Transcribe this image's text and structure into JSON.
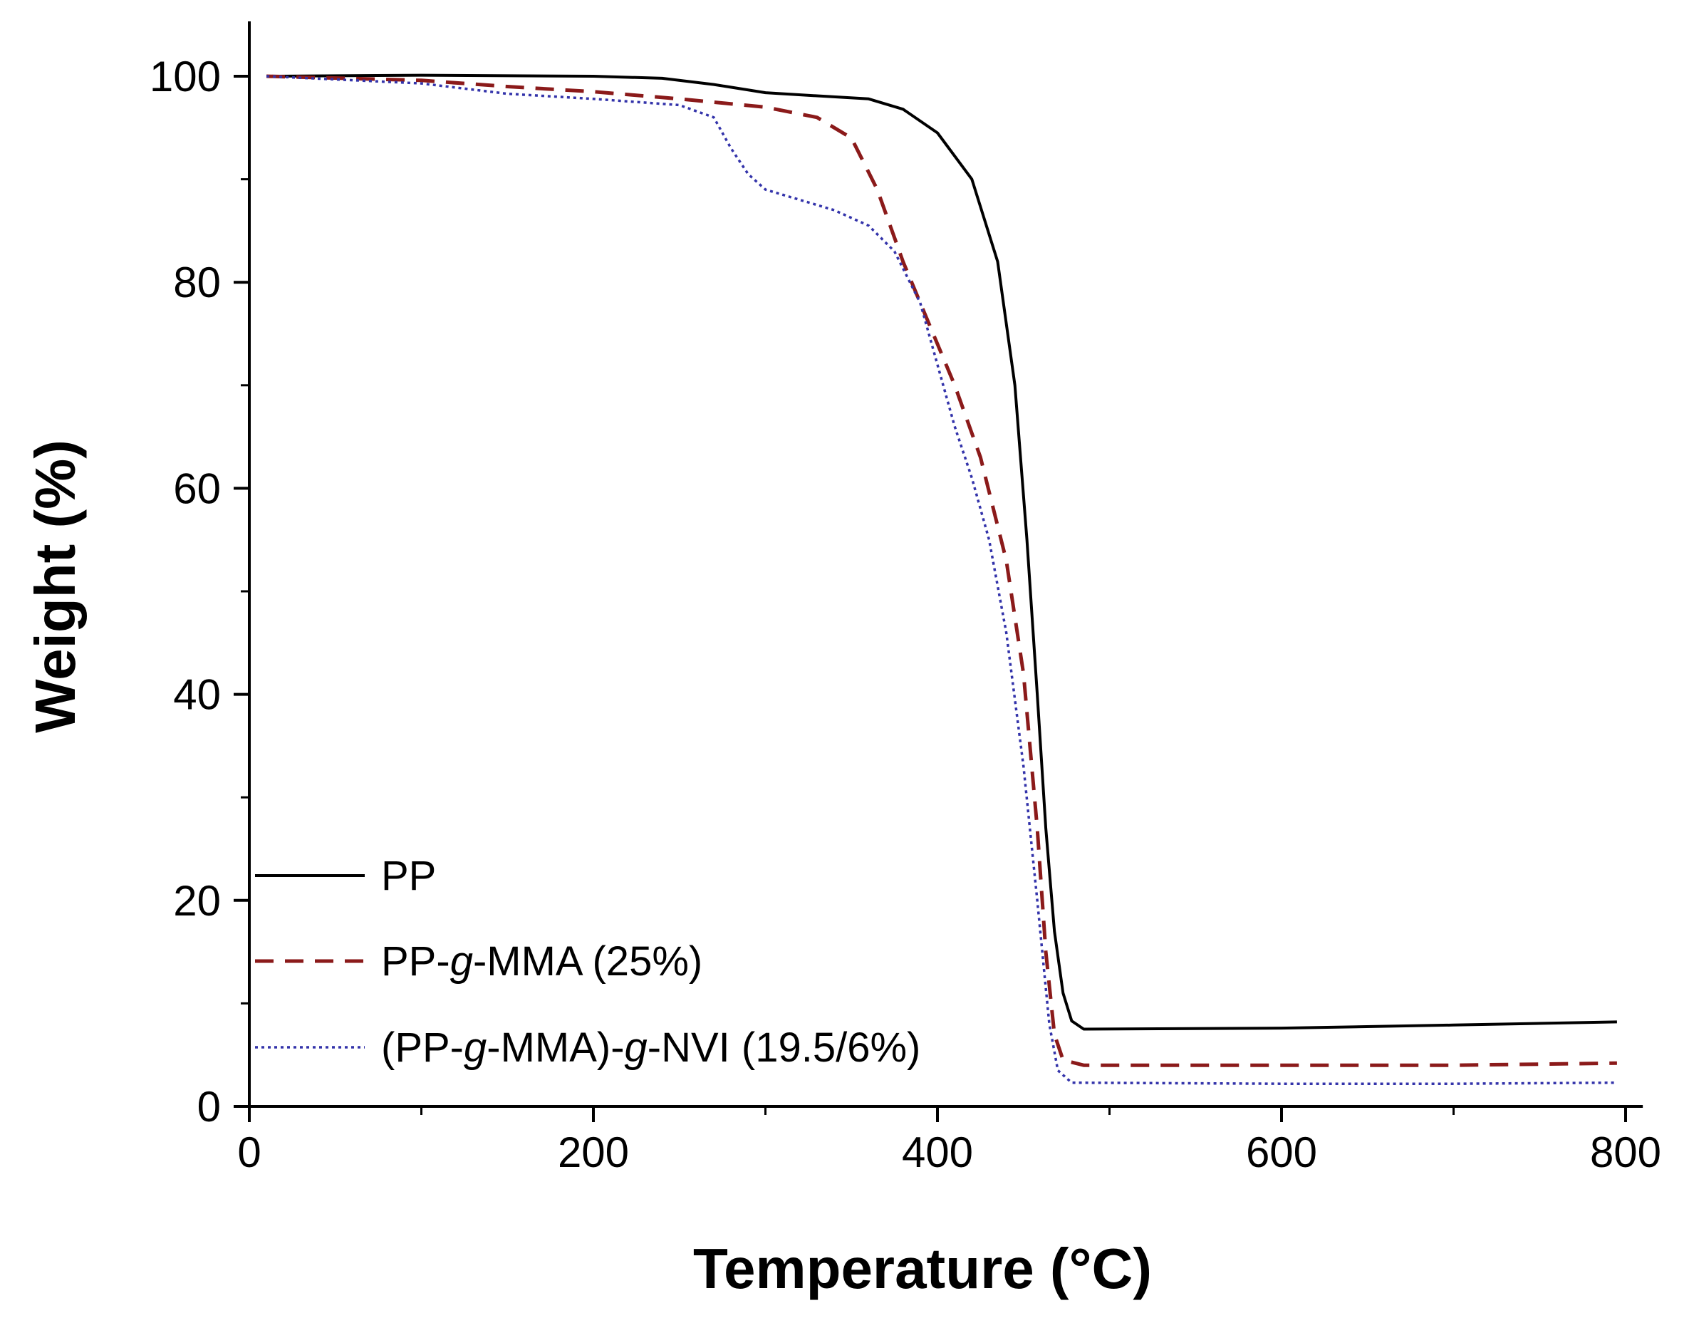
{
  "chart_data": {
    "type": "line",
    "title": "",
    "xlabel": "Temperature (°C)",
    "ylabel": "Weight (%)",
    "xlim": [
      0,
      810
    ],
    "ylim": [
      0,
      105
    ],
    "xticks": [
      0,
      200,
      400,
      600,
      800
    ],
    "yticks": [
      0,
      20,
      40,
      60,
      80,
      100
    ],
    "grid": false,
    "legend_position": "bottom-left",
    "series": [
      {
        "name": "PP",
        "name_parts": [
          "PP"
        ],
        "color": "#000000",
        "style": "solid",
        "points": [
          [
            10,
            100
          ],
          [
            100,
            100.1
          ],
          [
            200,
            100
          ],
          [
            240,
            99.8
          ],
          [
            270,
            99.2
          ],
          [
            300,
            98.4
          ],
          [
            330,
            98.1
          ],
          [
            360,
            97.8
          ],
          [
            380,
            96.8
          ],
          [
            400,
            94.5
          ],
          [
            420,
            90
          ],
          [
            435,
            82
          ],
          [
            445,
            70
          ],
          [
            452,
            55
          ],
          [
            458,
            40
          ],
          [
            463,
            27
          ],
          [
            468,
            17
          ],
          [
            473,
            11
          ],
          [
            478,
            8.3
          ],
          [
            485,
            7.5
          ],
          [
            600,
            7.6
          ],
          [
            700,
            7.9
          ],
          [
            795,
            8.2
          ]
        ]
      },
      {
        "name": "PP-g-MMA (25%)",
        "name_parts": [
          "PP-",
          "g",
          "-MMA (25%)"
        ],
        "color": "#8b1a1a",
        "style": "dashed",
        "points": [
          [
            10,
            100
          ],
          [
            100,
            99.6
          ],
          [
            150,
            99
          ],
          [
            200,
            98.5
          ],
          [
            250,
            97.8
          ],
          [
            300,
            97
          ],
          [
            330,
            96
          ],
          [
            350,
            94
          ],
          [
            365,
            89
          ],
          [
            380,
            82
          ],
          [
            395,
            76
          ],
          [
            410,
            70
          ],
          [
            425,
            63
          ],
          [
            440,
            53
          ],
          [
            450,
            42
          ],
          [
            458,
            27
          ],
          [
            463,
            15
          ],
          [
            468,
            7
          ],
          [
            473,
            4.5
          ],
          [
            485,
            4
          ],
          [
            600,
            4
          ],
          [
            700,
            4
          ],
          [
            795,
            4.2
          ]
        ]
      },
      {
        "name": "(PP-g-MMA)-g-NVI (19.5/6%)",
        "name_parts": [
          "(PP-",
          "g",
          "-MMA)-",
          "g",
          "-NVI (19.5/6%)"
        ],
        "color": "#3333aa",
        "style": "dotted",
        "points": [
          [
            10,
            100
          ],
          [
            100,
            99.3
          ],
          [
            150,
            98.3
          ],
          [
            200,
            97.8
          ],
          [
            250,
            97.2
          ],
          [
            270,
            96
          ],
          [
            280,
            93
          ],
          [
            290,
            90.5
          ],
          [
            300,
            89
          ],
          [
            320,
            88
          ],
          [
            340,
            87
          ],
          [
            360,
            85.5
          ],
          [
            375,
            83
          ],
          [
            390,
            78
          ],
          [
            400,
            72
          ],
          [
            410,
            66
          ],
          [
            420,
            61
          ],
          [
            430,
            55
          ],
          [
            440,
            46
          ],
          [
            450,
            33
          ],
          [
            458,
            20
          ],
          [
            465,
            8
          ],
          [
            470,
            3.5
          ],
          [
            478,
            2.3
          ],
          [
            600,
            2.2
          ],
          [
            700,
            2.2
          ],
          [
            795,
            2.3
          ]
        ]
      }
    ]
  }
}
